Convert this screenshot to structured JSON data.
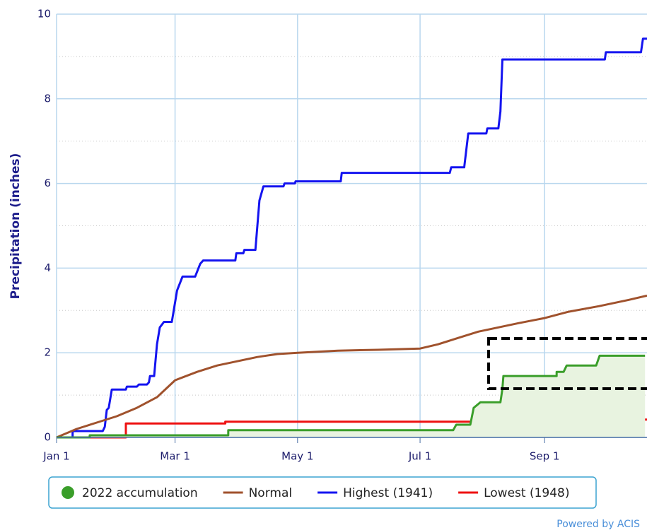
{
  "chart_data": {
    "type": "line",
    "y_label": "Precipitation (inches)",
    "credit": "Powered by ACIS",
    "xlim": [
      0,
      294
    ],
    "xticks": [
      {
        "value": 0,
        "label": "Jan 1"
      },
      {
        "value": 59,
        "label": "Mar 1"
      },
      {
        "value": 120,
        "label": "May 1"
      },
      {
        "value": 181,
        "label": "Jul 1"
      },
      {
        "value": 243,
        "label": "Sep 1"
      }
    ],
    "ylim": [
      0,
      10
    ],
    "yticks": [
      0,
      2,
      4,
      6,
      8,
      10
    ],
    "minor_yticks": [
      1,
      3,
      5,
      7,
      9
    ],
    "grid": true,
    "legend": "bottom",
    "series": [
      {
        "name": "2022 accumulation",
        "color": "#3a9e2a",
        "fill": "#e8f3e0",
        "x": [
          0,
          16.5,
          16.5,
          85.5,
          85.5,
          197.5,
          199,
          206,
          207.7,
          211,
          221,
          222,
          222.5,
          249,
          249,
          252.5,
          254,
          268.7,
          270.4,
          293
        ],
        "values": [
          0,
          0,
          0.05,
          0.05,
          0.17,
          0.17,
          0.3,
          0.3,
          0.7,
          0.83,
          0.83,
          1.15,
          1.45,
          1.45,
          1.55,
          1.55,
          1.7,
          1.7,
          1.93,
          1.93
        ]
      },
      {
        "name": "Normal",
        "color": "#a0522d",
        "x": [
          0,
          10,
          20,
          30,
          40,
          50,
          59,
          70,
          80,
          90,
          100,
          110,
          120,
          140,
          160,
          181,
          190,
          200,
          210,
          220,
          230,
          243,
          255,
          270,
          285,
          294
        ],
        "values": [
          0,
          0.2,
          0.35,
          0.5,
          0.7,
          0.95,
          1.35,
          1.55,
          1.7,
          1.8,
          1.9,
          1.97,
          2.0,
          2.05,
          2.07,
          2.1,
          2.2,
          2.35,
          2.5,
          2.6,
          2.7,
          2.82,
          2.97,
          3.1,
          3.25,
          3.35
        ]
      },
      {
        "name": "Highest (1941)",
        "color": "#1414f0",
        "x": [
          0,
          8,
          8,
          23,
          24,
          25,
          26,
          27.5,
          34.5,
          35,
          40,
          41,
          45,
          46,
          46.5,
          48.6,
          50,
          51.4,
          53.5,
          57.4,
          60,
          62.7,
          69,
          71.5,
          73,
          89,
          89.5,
          93,
          93.5,
          99,
          101,
          103,
          113,
          113.5,
          118.7,
          119,
          141.5,
          142,
          195.8,
          196.5,
          203,
          205,
          214,
          214.5,
          220,
          221,
          222,
          273,
          273.5,
          291,
          292,
          294
        ],
        "values": [
          0,
          0,
          0.15,
          0.15,
          0.25,
          0.65,
          0.7,
          1.13,
          1.13,
          1.2,
          1.2,
          1.25,
          1.25,
          1.3,
          1.45,
          1.45,
          2.2,
          2.6,
          2.73,
          2.73,
          3.47,
          3.8,
          3.8,
          4.1,
          4.18,
          4.18,
          4.35,
          4.35,
          4.43,
          4.43,
          5.6,
          5.93,
          5.93,
          6.0,
          6.0,
          6.05,
          6.05,
          6.25,
          6.25,
          6.38,
          6.38,
          7.18,
          7.18,
          7.3,
          7.3,
          7.7,
          8.93,
          8.93,
          9.1,
          9.1,
          9.42,
          9.42
        ]
      },
      {
        "name": "Lowest (1948)",
        "color": "#ee1111",
        "x": [
          0,
          34.5,
          34.5,
          84,
          84,
          217,
          217,
          294
        ],
        "values": [
          0,
          0,
          0.33,
          0.33,
          0.37,
          0.37,
          0.42,
          0.42
        ]
      }
    ]
  }
}
